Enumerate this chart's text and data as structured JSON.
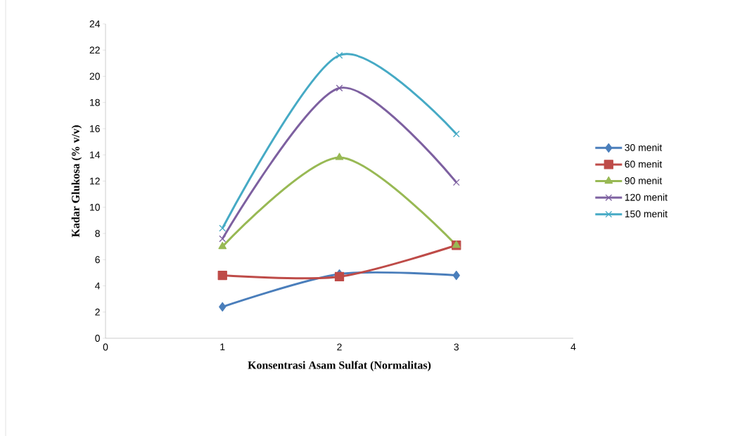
{
  "chart_data": {
    "type": "line",
    "xlabel": "Konsentrasi Asam Sulfat (Normalitas)",
    "ylabel": "Kadar Glukosa (% v/v)",
    "x": [
      1,
      2,
      3
    ],
    "xlim": [
      0,
      4
    ],
    "xticks": [
      0,
      1,
      2,
      3,
      4
    ],
    "ylim": [
      0,
      24
    ],
    "yticks": [
      0,
      2,
      4,
      6,
      8,
      10,
      12,
      14,
      16,
      18,
      20,
      22,
      24
    ],
    "legend": "right",
    "grid": false,
    "series": [
      {
        "name": "30 menit",
        "color": "#4a7ebb",
        "marker": "diamond",
        "values": [
          2.4,
          4.9,
          4.8
        ]
      },
      {
        "name": "60 menit",
        "color": "#be4b48",
        "marker": "square",
        "values": [
          4.8,
          4.7,
          7.1
        ]
      },
      {
        "name": "90 menit",
        "color": "#98b954",
        "marker": "triangle",
        "values": [
          7.0,
          13.8,
          7.1
        ]
      },
      {
        "name": "120 menit",
        "color": "#7d60a0",
        "marker": "cross",
        "values": [
          7.6,
          19.1,
          11.9
        ]
      },
      {
        "name": "150 menit",
        "color": "#46aac5",
        "marker": "cross",
        "values": [
          8.4,
          21.6,
          15.6
        ]
      }
    ]
  }
}
